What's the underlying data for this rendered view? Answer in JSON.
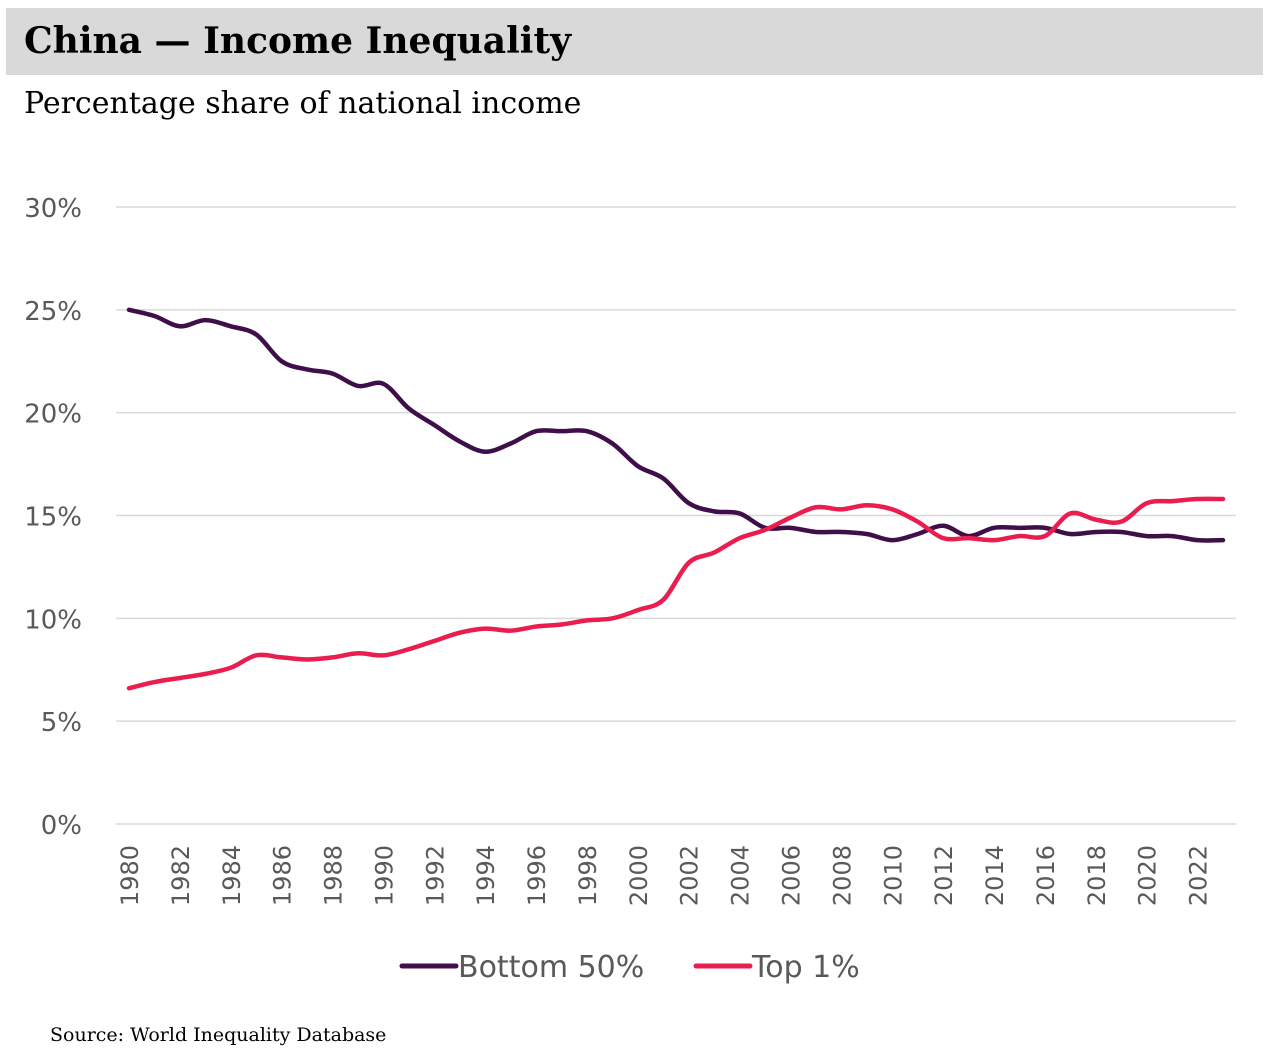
{
  "header": {
    "title": "China — Income Inequality",
    "subtitle": "Percentage share of national income"
  },
  "source": "Source: World Inequality Database",
  "colors": {
    "bottom50": "#3f0f4a",
    "top1": "#ea1d4f",
    "grid": "#d9d9d9",
    "axis_text": "#595959",
    "title_bg": "#d9d9d9"
  },
  "chart_data": {
    "type": "line",
    "title": "China — Income Inequality",
    "subtitle": "Percentage share of national income",
    "xlabel": "",
    "ylabel": "",
    "ylim": [
      0,
      30
    ],
    "yticks": [
      0,
      5,
      10,
      15,
      20,
      25,
      30
    ],
    "ytick_labels": [
      "0%",
      "5%",
      "10%",
      "15%",
      "20%",
      "25%",
      "30%"
    ],
    "grid": true,
    "legend_position": "bottom",
    "x": [
      1980,
      1981,
      1982,
      1983,
      1984,
      1985,
      1986,
      1987,
      1988,
      1989,
      1990,
      1991,
      1992,
      1993,
      1994,
      1995,
      1996,
      1997,
      1998,
      1999,
      2000,
      2001,
      2002,
      2003,
      2004,
      2005,
      2006,
      2007,
      2008,
      2009,
      2010,
      2011,
      2012,
      2013,
      2014,
      2015,
      2016,
      2017,
      2018,
      2019,
      2020,
      2021,
      2022,
      2023
    ],
    "xtick_labels": [
      "1980",
      "1982",
      "1984",
      "1986",
      "1988",
      "1990",
      "1992",
      "1994",
      "1996",
      "1998",
      "2000",
      "2002",
      "2004",
      "2006",
      "2008",
      "2010",
      "2012",
      "2014",
      "2016",
      "2018",
      "2020",
      "2022"
    ],
    "series": [
      {
        "name": "Bottom 50%",
        "color": "#3f0f4a",
        "values": [
          25.0,
          24.7,
          24.2,
          24.5,
          24.2,
          23.8,
          22.5,
          22.1,
          21.9,
          21.3,
          21.4,
          20.2,
          19.4,
          18.6,
          18.1,
          18.5,
          19.1,
          19.1,
          19.1,
          18.5,
          17.4,
          16.8,
          15.6,
          15.2,
          15.1,
          14.4,
          14.4,
          14.2,
          14.2,
          14.1,
          13.8,
          14.1,
          14.5,
          14.0,
          14.4,
          14.4,
          14.4,
          14.1,
          14.2,
          14.2,
          14.0,
          14.0,
          13.8,
          13.8
        ]
      },
      {
        "name": "Top 1%",
        "color": "#ea1d4f",
        "values": [
          6.6,
          6.9,
          7.1,
          7.3,
          7.6,
          8.2,
          8.1,
          8.0,
          8.1,
          8.3,
          8.2,
          8.5,
          8.9,
          9.3,
          9.5,
          9.4,
          9.6,
          9.7,
          9.9,
          10.0,
          10.4,
          10.9,
          12.7,
          13.2,
          13.9,
          14.3,
          14.9,
          15.4,
          15.3,
          15.5,
          15.3,
          14.7,
          13.9,
          13.9,
          13.8,
          14.0,
          14.0,
          15.1,
          14.8,
          14.7,
          15.6,
          15.7,
          15.8,
          15.8
        ]
      }
    ]
  }
}
